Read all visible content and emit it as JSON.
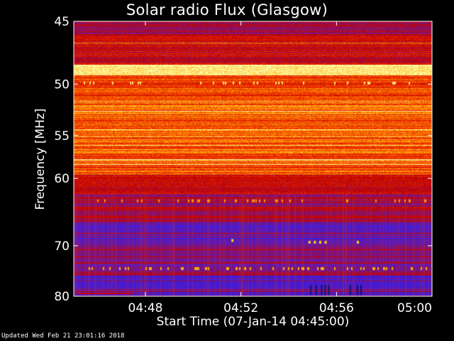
{
  "chart_data": {
    "type": "heatmap",
    "title": "Solar radio Flux (Glasgow)",
    "xlabel": "Start Time (07-Jan-14 04:45:00)",
    "ylabel": "Frequency [MHz]",
    "x_ticks": [
      "04:48",
      "04:52",
      "04:56",
      "05:00"
    ],
    "x_tick_minutes": [
      3,
      7,
      11,
      15
    ],
    "xlim_minutes": [
      0,
      15
    ],
    "y_ticks": [
      45,
      50,
      55,
      60,
      70,
      80
    ],
    "ylim": [
      45,
      80
    ],
    "y_scale": "reciprocal",
    "colors": {
      "low": "#3a1ad6",
      "mid_low": "#8a1070",
      "mid": "#b80000",
      "high": "#f23a00",
      "very_high": "#ffb000",
      "max": "#ffffa0"
    },
    "grid": false,
    "legend": "none"
  },
  "footer": "Updated Wed Feb 21 23:01:16 2018"
}
